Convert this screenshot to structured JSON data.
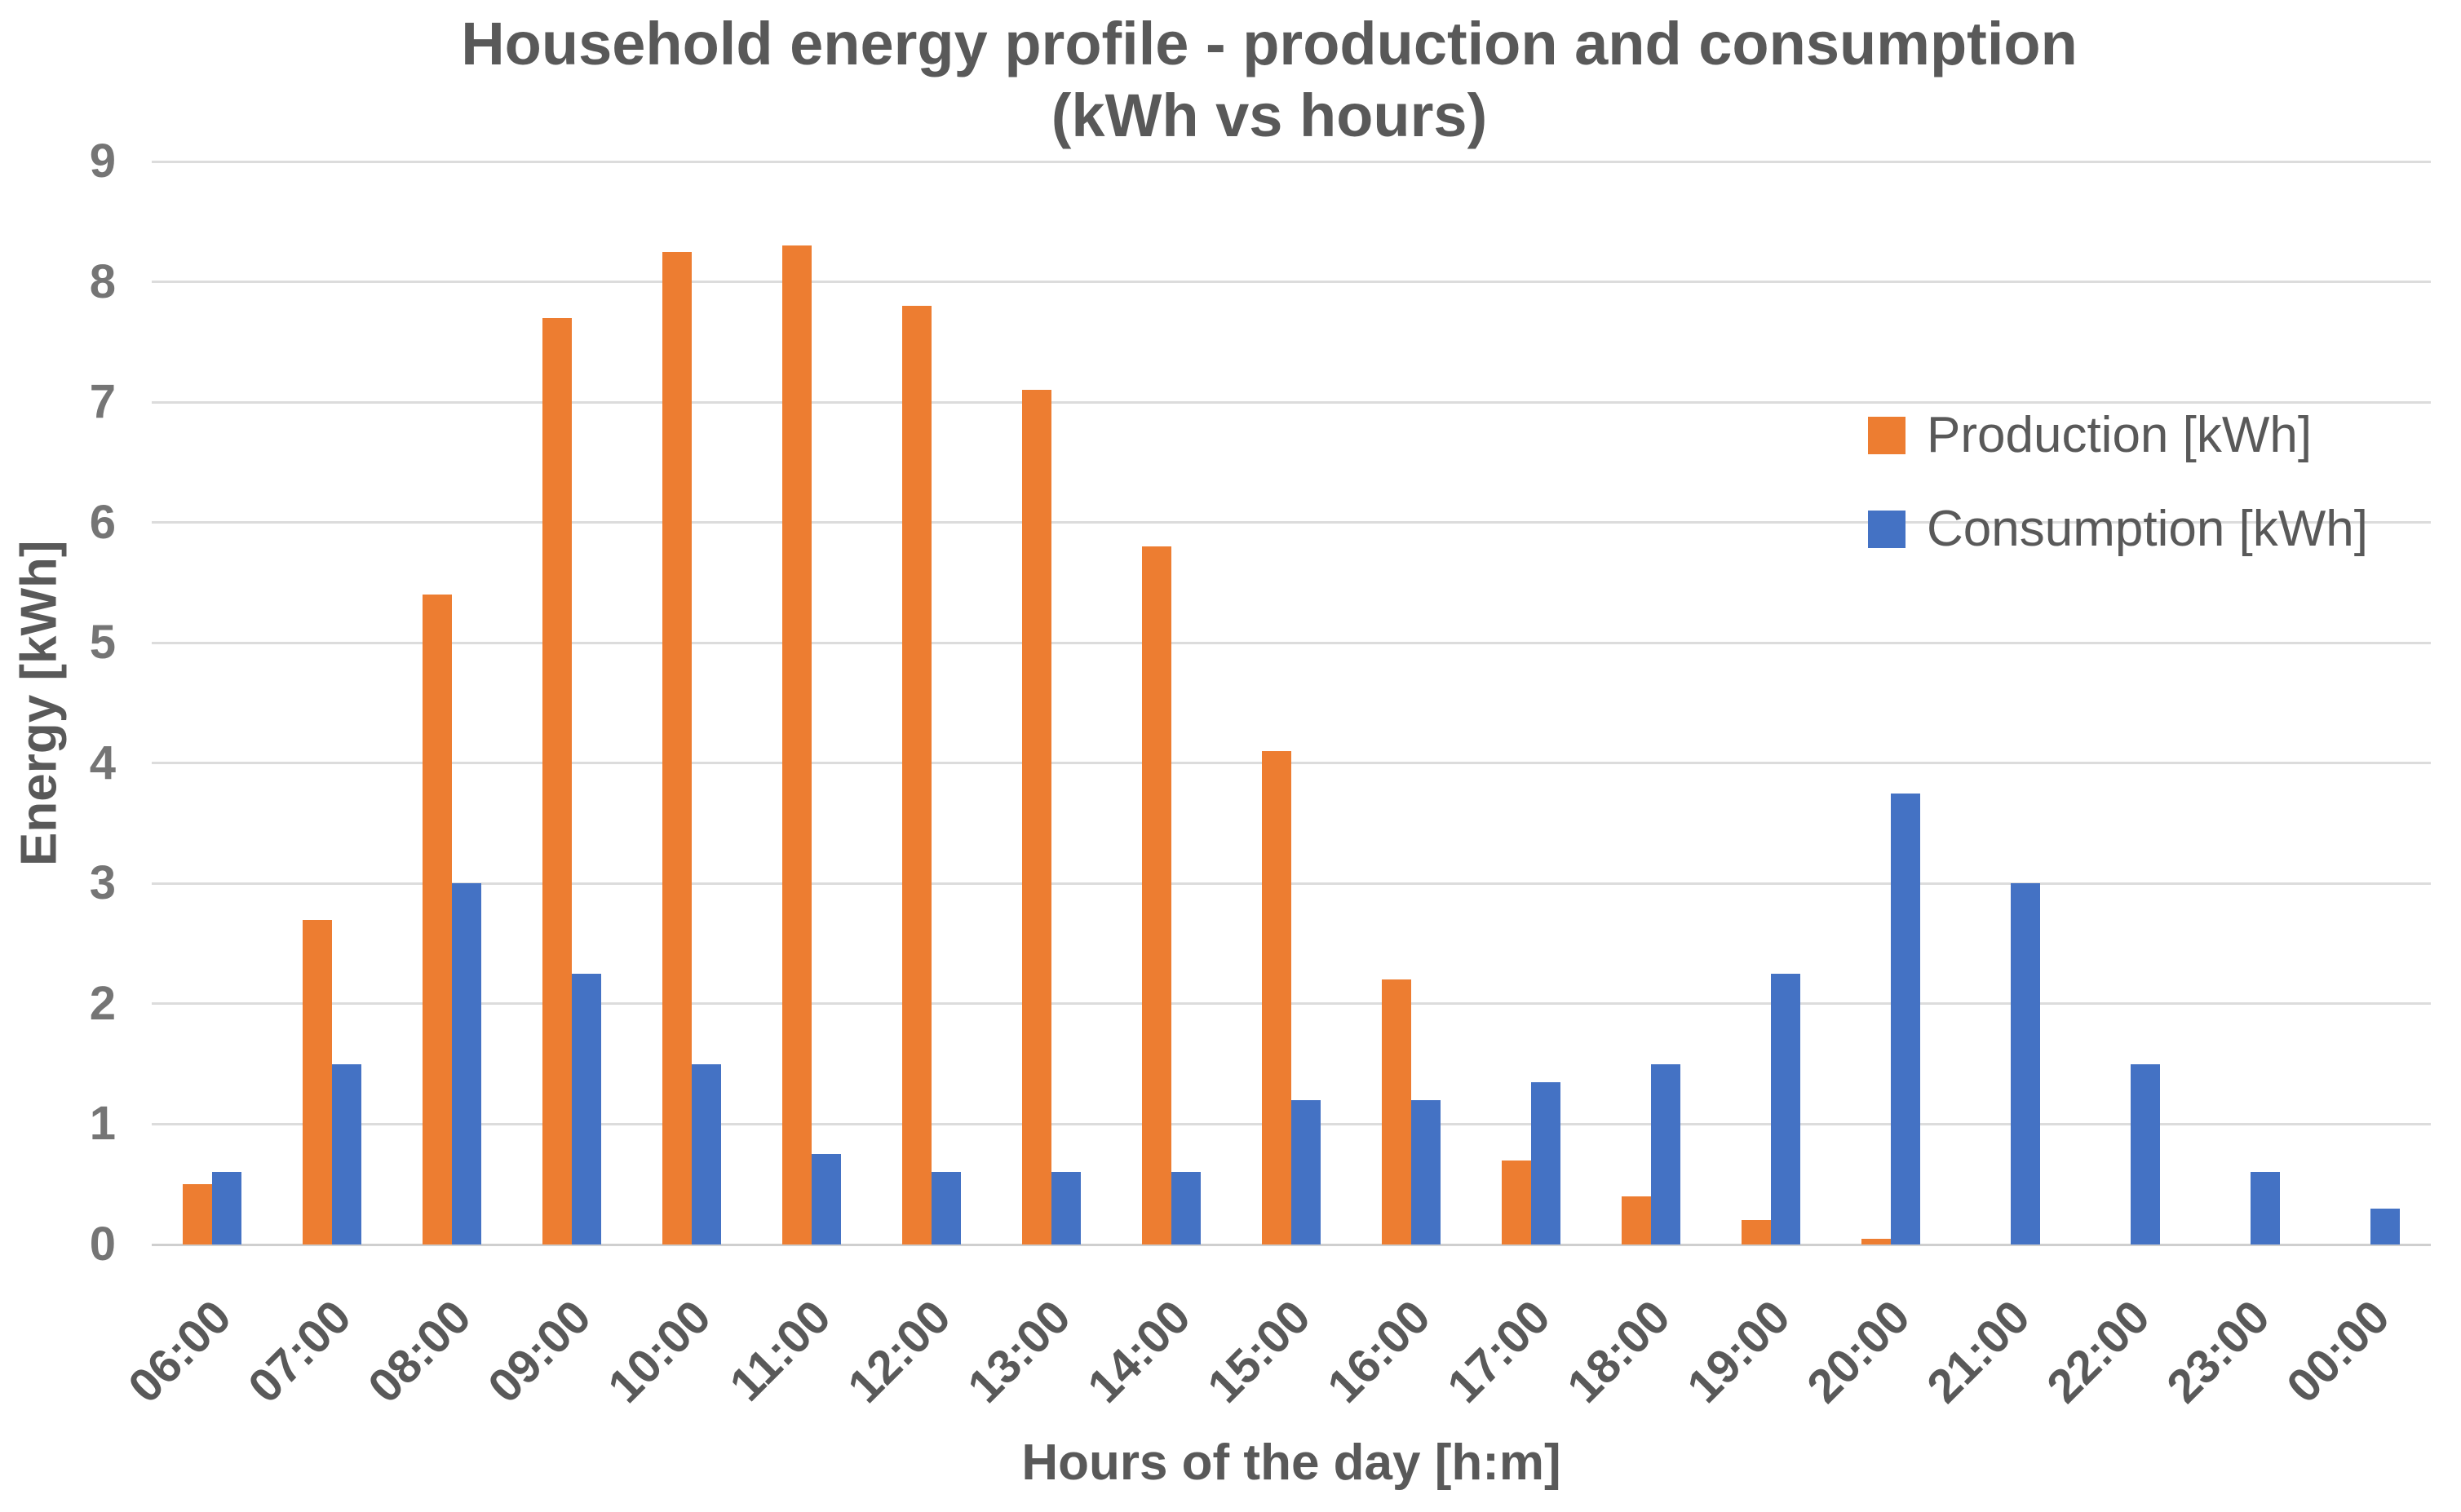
{
  "chart_data": {
    "type": "bar",
    "title": "Household energy profile - production and consumption",
    "subtitle": "(kWh vs hours)",
    "xlabel": "Hours of the day [h:m]",
    "ylabel": "Energy [kWh]",
    "ylim": [
      0,
      9
    ],
    "y_ticks": [
      0,
      1,
      2,
      3,
      4,
      5,
      6,
      7,
      8,
      9
    ],
    "grid": true,
    "legend_position": "inside-right",
    "categories": [
      "06:00",
      "07:00",
      "08:00",
      "09:00",
      "10:00",
      "11:00",
      "12:00",
      "13:00",
      "14:00",
      "15:00",
      "16:00",
      "17:00",
      "18:00",
      "19:00",
      "20:00",
      "21:00",
      "22:00",
      "23:00",
      "00:00"
    ],
    "series": [
      {
        "name": "Production [kWh]",
        "color": "#ED7D31",
        "values": [
          0.5,
          2.7,
          5.4,
          7.7,
          8.25,
          8.3,
          7.8,
          7.1,
          5.8,
          4.1,
          2.2,
          0.7,
          0.4,
          0.2,
          0.05,
          0,
          0,
          0,
          0
        ]
      },
      {
        "name": "Consumption [kWh]",
        "color": "#4472C4",
        "values": [
          0.6,
          1.5,
          3.0,
          2.25,
          1.5,
          0.75,
          0.6,
          0.6,
          0.6,
          1.2,
          1.2,
          1.35,
          1.5,
          2.25,
          3.75,
          3.0,
          1.5,
          0.6,
          0.3
        ]
      }
    ],
    "colors": {
      "text": "#595959",
      "tick_text": "#757575",
      "grid": "#DCDCDC",
      "axis_line": "#CFCFCF",
      "background": "#FFFFFF"
    }
  }
}
